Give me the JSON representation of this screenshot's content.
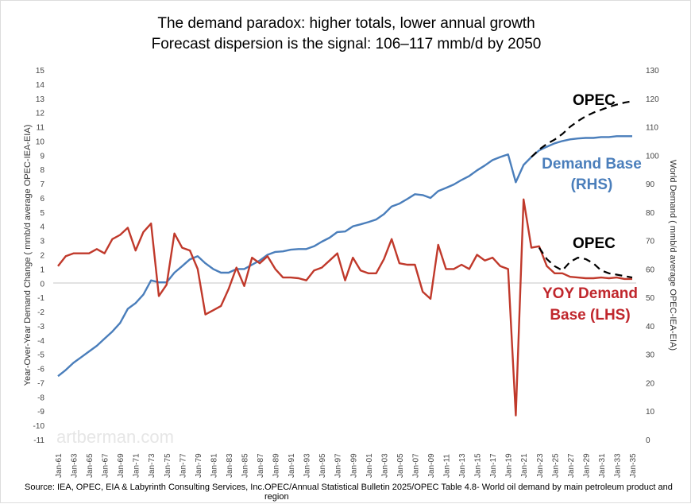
{
  "chart_data": {
    "type": "line",
    "title": "The demand paradox: higher totals, lower annual growth",
    "subtitle": "Forecast dispersion is the signal: 106–117 mmb/d by 2050",
    "ylabel_left": "Year-Over-Year Demand Change ( mmb/d average OPEC-IEA-EIA)",
    "ylabel_right": "World Demand  ( mmb/d average OPEC-IEA-EIA)",
    "ylim_left": [
      -11,
      15
    ],
    "ylim_right": [
      0,
      130
    ],
    "left_ticks": [
      -11,
      -10,
      -9,
      -8,
      -7,
      -6,
      -5,
      -4,
      -3,
      -2,
      -1,
      0,
      1,
      2,
      3,
      4,
      5,
      6,
      7,
      8,
      9,
      10,
      11,
      12,
      13,
      14,
      15
    ],
    "right_ticks": [
      0,
      10,
      20,
      30,
      40,
      50,
      60,
      70,
      80,
      90,
      100,
      110,
      120,
      130
    ],
    "x_tick_labels": [
      "Jan-61",
      "Jan-63",
      "Jan-65",
      "Jan-67",
      "Jan-69",
      "Jan-71",
      "Jan-73",
      "Jan-75",
      "Jan-77",
      "Jan-79",
      "Jan-81",
      "Jan-83",
      "Jan-85",
      "Jan-87",
      "Jan-89",
      "Jan-91",
      "Jan-93",
      "Jan-95",
      "Jan-97",
      "Jan-99",
      "Jan-01",
      "Jan-03",
      "Jan-05",
      "Jan-07",
      "Jan-09",
      "Jan-11",
      "Jan-13",
      "Jan-15",
      "Jan-17",
      "Jan-19",
      "Jan-21",
      "Jan-23",
      "Jan-25",
      "Jan-27",
      "Jan-29",
      "Jan-31",
      "Jan-33",
      "Jan-35"
    ],
    "x_range": [
      1961,
      2035
    ],
    "grid": "zero line only",
    "series": [
      {
        "name": "Demand Base (RHS)",
        "axis": "right",
        "color": "#4a7ebb",
        "style": "solid",
        "start_year": 1961,
        "values": [
          22.3,
          24.5,
          27,
          29,
          31,
          33,
          35.5,
          38,
          41,
          46,
          48,
          51,
          56,
          55.3,
          55.3,
          58.7,
          61,
          63.4,
          64.5,
          62,
          60,
          58.7,
          58.7,
          60,
          60,
          61.5,
          63,
          65,
          66,
          66.2,
          66.8,
          67,
          67,
          68,
          69.6,
          71,
          73,
          73.2,
          75,
          75.7,
          76.5,
          77.4,
          79.3,
          82,
          83,
          84.6,
          86.3,
          86,
          85,
          87.4,
          88.5,
          89.7,
          91.3,
          92.7,
          94.7,
          96.4,
          98.3,
          99.4,
          100.3,
          90.5,
          96.6,
          99.4,
          101.7,
          103,
          104.2,
          105,
          105.6,
          105.9,
          106.1,
          106.1,
          106.4,
          106.4,
          106.7,
          106.7,
          106.7
        ]
      },
      {
        "name": "OPEC",
        "axis": "right",
        "color": "#000000",
        "style": "dashed",
        "start_year": 2022,
        "values": [
          99.4,
          102,
          104,
          105.5,
          107.5,
          110,
          112,
          113.7,
          115,
          116,
          117,
          117.8,
          118.5,
          119
        ]
      },
      {
        "name": "YOY Demand Base (LHS)",
        "axis": "left",
        "color": "#c0392b",
        "style": "solid",
        "start_year": 1961,
        "values": [
          1.2,
          1.9,
          2.1,
          2.1,
          2.1,
          2.4,
          2.1,
          3.1,
          3.4,
          3.9,
          2.3,
          3.6,
          4.2,
          -0.9,
          -0.1,
          3.5,
          2.5,
          2.3,
          1.0,
          -2.2,
          -1.9,
          -1.6,
          -0.4,
          1.1,
          -0.2,
          1.8,
          1.4,
          1.9,
          1.0,
          0.4,
          0.4,
          0.35,
          0.2,
          0.9,
          1.1,
          1.6,
          2.1,
          0.2,
          1.8,
          0.9,
          0.7,
          0.7,
          1.7,
          3.1,
          1.4,
          1.3,
          1.3,
          -0.6,
          -1.1,
          2.7,
          1.0,
          1.0,
          1.3,
          1.0,
          2.0,
          1.6,
          1.8,
          1.2,
          1.0,
          -9.3,
          5.9,
          2.5,
          2.6,
          1.2,
          0.7,
          0.7,
          0.45,
          0.4,
          0.35,
          0.35,
          0.4,
          0.35,
          0.4,
          0.3,
          0.3
        ]
      },
      {
        "name": "OPEC",
        "axis": "left",
        "color": "#000000",
        "style": "dashed",
        "start_year": 2023,
        "values": [
          2.5,
          1.7,
          1.2,
          0.9,
          1.5,
          1.8,
          1.7,
          1.4,
          0.9,
          0.7,
          0.6,
          0.5,
          0.4
        ]
      }
    ],
    "annotations": {
      "opec_upper": "OPEC",
      "demand_base_line1": "Demand Base",
      "demand_base_line2": "(RHS)",
      "opec_lower": "OPEC",
      "yoy_line1": "YOY Demand",
      "yoy_line2": "Base (LHS)"
    }
  },
  "watermark": "artberman.com",
  "source_left": "Source: IEA, OPEC, EIA  & Labyrinth Consulting Services, Inc.",
  "source_right": "OPEC/Annual Statistical Bulletin 2025/OPEC Table 4.8- World oil demand by main petroleum product and region"
}
